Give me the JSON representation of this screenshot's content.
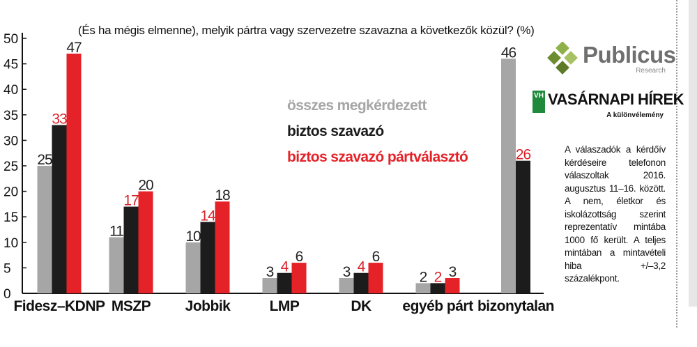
{
  "chart_data": {
    "type": "bar",
    "title": "(És ha mégis  elmenne), melyik pártra vagy szervezetre szavazna a következők közül? (%)",
    "ylim": [
      0,
      50
    ],
    "yticks": [
      0,
      5,
      10,
      15,
      20,
      25,
      30,
      35,
      40,
      45,
      50
    ],
    "categories": [
      "Fidesz–KDNP",
      "MSZP",
      "Jobbik",
      "LMP",
      "DK",
      "egyéb párt",
      "bizonytalan"
    ],
    "series": [
      {
        "name": "összes megkérdezett",
        "color": "#a6a6a6",
        "label_color": "#222222",
        "values": [
          25,
          11,
          10,
          3,
          3,
          2,
          46
        ]
      },
      {
        "name": "biztos szavazó",
        "color": "#1c1c1c",
        "label_color": "#d9232a",
        "values": [
          33,
          17,
          14,
          4,
          4,
          2,
          26
        ]
      },
      {
        "name": "biztos szavazó pártválasztó",
        "color": "#e42228",
        "label_color": "#222222",
        "values": [
          47,
          20,
          18,
          6,
          6,
          3,
          null
        ]
      }
    ],
    "legend": {
      "position": "center",
      "colors": [
        "#a6a6a6",
        "#1c1c1c",
        "#e42228"
      ]
    },
    "grid": false
  },
  "branding": {
    "publicus_name": "Publicus",
    "publicus_sub": "Research",
    "vh_mark": "VH",
    "vh_name": "VASÁRNAPI HÍREK",
    "vh_sub": "A különvélemény"
  },
  "note": "A válaszadók a kérdőív kérdéseire telefonon válaszoltak 2016. augusztus 11–16. között. A nem, életkor és iskolázottság szerint reprezentatív mintába 1000 fő került. A teljes mintában a mintavételi hiba +/–3,2 százalékpont."
}
